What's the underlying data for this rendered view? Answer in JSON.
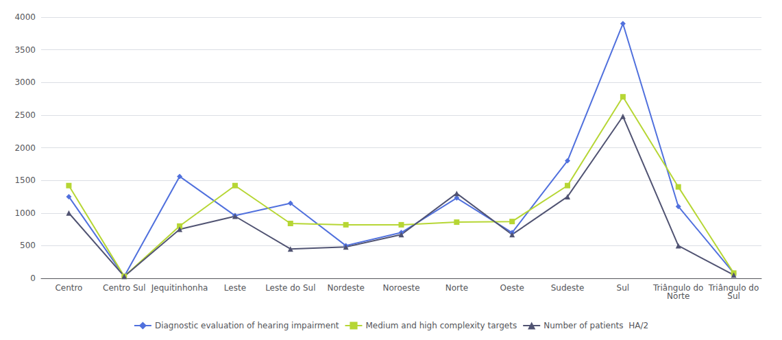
{
  "chart_data": {
    "type": "line",
    "categories": [
      "Centro",
      "Centro Sul",
      "Jequitinhonha",
      "Leste",
      "Leste do Sul",
      "Nordeste",
      "Noroeste",
      "Norte",
      "Oeste",
      "Sudeste",
      "Sul",
      "Triângulo do\nNorte",
      "Triângulo do\nSul"
    ],
    "series": [
      {
        "name": "Diagnostic evaluation of hearing impairment",
        "marker": "diamond",
        "values": [
          1250,
          30,
          1560,
          960,
          1150,
          500,
          700,
          1230,
          700,
          1800,
          3900,
          1100,
          80
        ]
      },
      {
        "name": "Medium and high complexity targets",
        "marker": "square",
        "values": [
          1420,
          30,
          800,
          1420,
          840,
          820,
          820,
          860,
          870,
          1420,
          2780,
          1400,
          80
        ]
      },
      {
        "name": "Number of patients  HA/2",
        "marker": "triangle",
        "values": [
          1000,
          30,
          750,
          950,
          450,
          480,
          670,
          1300,
          670,
          1250,
          2480,
          500,
          50
        ]
      }
    ],
    "ylim": [
      0,
      4000
    ],
    "yticks": [
      0,
      500,
      1000,
      1500,
      2000,
      2500,
      3000,
      3500,
      4000
    ],
    "grid": true,
    "legend": "bottom"
  }
}
